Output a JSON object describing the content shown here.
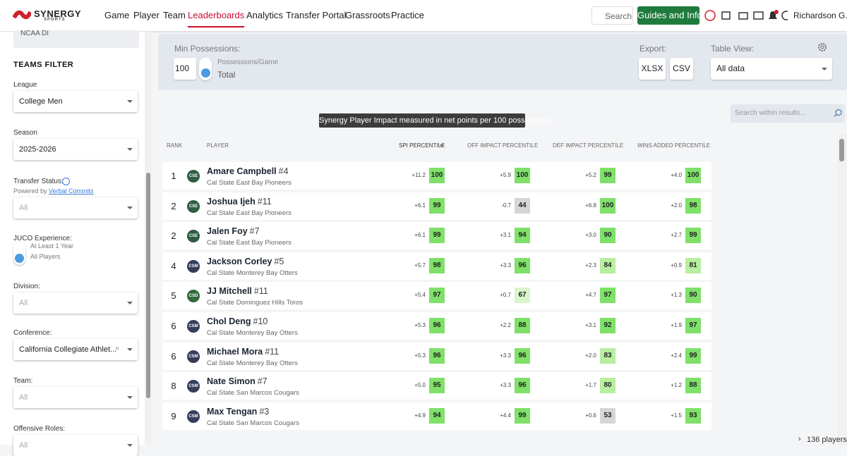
{
  "nav": {
    "logo": "SYNERGY",
    "logo_sub": "SPORTS",
    "items": [
      "Game",
      "Player",
      "Team",
      "Leaderboards",
      "Analytics",
      "Transfer Portal",
      "Grassroots",
      "Practice"
    ],
    "search": "Search",
    "guides": "Guides and Info",
    "user": "Richardson G."
  },
  "sidebar": {
    "top_value": "NCAA DI",
    "section_title": "TEAMS FILTER",
    "filters": [
      {
        "label": "League",
        "value": "College Men"
      },
      {
        "label": "Season",
        "value": "2025-2026"
      },
      {
        "label": "Transfer Status:",
        "note": "Powered by",
        "note_link": "Verbal Commits",
        "value": "All"
      },
      {
        "label": "JUCO Experience:",
        "options": [
          "At Least 1 Year",
          "All Players"
        ]
      },
      {
        "label": "Division:",
        "value": "All"
      },
      {
        "label": "Conference:",
        "value": "California Collegiate Athlet..."
      },
      {
        "label": "Team:",
        "value": "All"
      },
      {
        "label": "Offensive Roles:",
        "value": "All"
      }
    ]
  },
  "toolbar": {
    "min_possessions_label": "Min Possessions:",
    "min_possessions_value": "100",
    "toggle_options": [
      "Possessions/Game",
      "Total"
    ],
    "export_label": "Export:",
    "export_buttons": [
      "XLSX",
      "CSV"
    ],
    "table_view_label": "Table View:",
    "table_view_value": "All data"
  },
  "tooltip": "Synergy Player Impact measured in net points per 100 possessions",
  "search_placeholder": "Search within results...",
  "table": {
    "headers": [
      "RANK",
      "PLAYER",
      "SPI PERCENTILE",
      "OFF IMPACT PERCENTILE",
      "DEF IMPACT PERCENTILE",
      "WINS ADDED PERCENTILE"
    ],
    "rows": [
      {
        "rank": "1",
        "badge": "CSE",
        "name": "Amare Campbell",
        "number": "#4",
        "team": "Cal State East Bay Pioneers",
        "metrics": [
          [
            "+11.2",
            100
          ],
          [
            "+5.9",
            100
          ],
          [
            "+5.2",
            99
          ],
          [
            "+4.0",
            100
          ]
        ]
      },
      {
        "rank": "2",
        "badge": "CSE",
        "name": "Joshua Ijeh",
        "number": "#11",
        "team": "Cal State East Bay Pioneers",
        "metrics": [
          [
            "+6.1",
            99
          ],
          [
            "-0.7",
            44
          ],
          [
            "+6.8",
            100
          ],
          [
            "+2.0",
            98
          ]
        ]
      },
      {
        "rank": "2",
        "badge": "CSE",
        "name": "Jalen Foy",
        "number": "#7",
        "team": "Cal State East Bay Pioneers",
        "metrics": [
          [
            "+6.1",
            99
          ],
          [
            "+3.1",
            94
          ],
          [
            "+3.0",
            90
          ],
          [
            "+2.7",
            99
          ]
        ]
      },
      {
        "rank": "4",
        "badge": "CSM",
        "name": "Jackson Corley",
        "number": "#5",
        "team": "Cal State Monterey Bay Otters",
        "metrics": [
          [
            "+5.7",
            98
          ],
          [
            "+3.3",
            96
          ],
          [
            "+2.3",
            84
          ],
          [
            "+0.9",
            81
          ]
        ]
      },
      {
        "rank": "5",
        "badge": "CSD",
        "name": "JJ Mitchell",
        "number": "#11",
        "team": "Cal State Dominguez Hills Toros",
        "metrics": [
          [
            "+5.4",
            97
          ],
          [
            "+0.7",
            67
          ],
          [
            "+4.7",
            97
          ],
          [
            "+1.3",
            90
          ]
        ]
      },
      {
        "rank": "6",
        "badge": "CSM",
        "name": "Chol Deng",
        "number": "#10",
        "team": "Cal State Monterey Bay Otters",
        "metrics": [
          [
            "+5.3",
            96
          ],
          [
            "+2.2",
            88
          ],
          [
            "+3.1",
            92
          ],
          [
            "+1.9",
            97
          ]
        ]
      },
      {
        "rank": "6",
        "badge": "CSM",
        "name": "Michael Mora",
        "number": "#11",
        "team": "Cal State Monterey Bay Otters",
        "metrics": [
          [
            "+5.3",
            96
          ],
          [
            "+3.3",
            96
          ],
          [
            "+2.0",
            83
          ],
          [
            "+2.4",
            99
          ]
        ]
      },
      {
        "rank": "8",
        "badge": "CSM",
        "name": "Nate Simon",
        "number": "#7",
        "team": "Cal State San Marcos Cougars",
        "metrics": [
          [
            "+5.0",
            95
          ],
          [
            "+3.3",
            96
          ],
          [
            "+1.7",
            80
          ],
          [
            "+1.2",
            88
          ]
        ]
      },
      {
        "rank": "9",
        "badge": "CSM",
        "name": "Max Tengan",
        "number": "#3",
        "team": "Cal State San Marcos Cougars",
        "metrics": [
          [
            "+4.9",
            94
          ],
          [
            "+4.4",
            99
          ],
          [
            "+0.6",
            53
          ],
          [
            "+1.5",
            93
          ]
        ]
      }
    ]
  },
  "footer_count": "136 players"
}
